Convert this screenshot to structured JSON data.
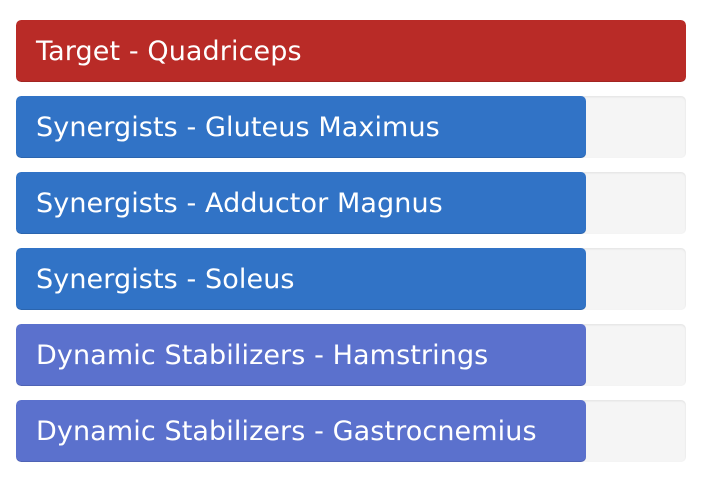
{
  "muscles": [
    {
      "label": "Target - Quadriceps",
      "fill": 1.0,
      "color": "#b92b27"
    },
    {
      "label": "Synergists - Gluteus Maximus",
      "fill": 0.85,
      "color": "#3173c6"
    },
    {
      "label": "Synergists - Adductor Magnus",
      "fill": 0.85,
      "color": "#3173c6"
    },
    {
      "label": "Synergists - Soleus",
      "fill": 0.85,
      "color": "#3173c6"
    },
    {
      "label": "Dynamic Stabilizers - Hamstrings",
      "fill": 0.85,
      "color": "#5b71cd"
    },
    {
      "label": "Dynamic Stabilizers - Gastrocnemius",
      "fill": 0.85,
      "color": "#5b71cd"
    }
  ]
}
